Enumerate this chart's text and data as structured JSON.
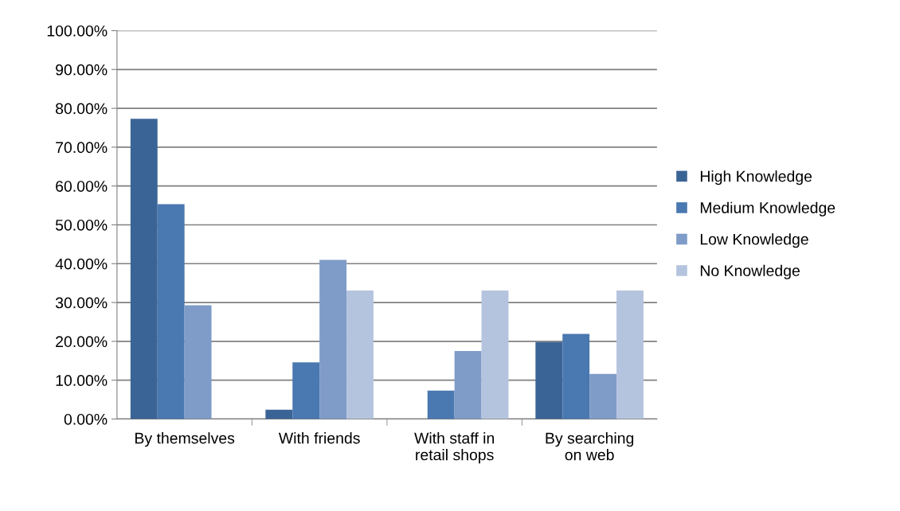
{
  "chart_data": {
    "type": "bar",
    "categories": [
      "By themselves",
      "With friends",
      "With staff in\nretail shops",
      "By searching\non web"
    ],
    "series": [
      {
        "name": "High Knowledge",
        "color": "#3b6496",
        "values": [
          77.3,
          2.4,
          0,
          19.8
        ]
      },
      {
        "name": "Medium Knowledge",
        "color": "#4a78b0",
        "values": [
          55.3,
          14.6,
          7.3,
          21.9
        ]
      },
      {
        "name": "Low Knowledge",
        "color": "#7f9cc8",
        "values": [
          29.3,
          41.0,
          17.5,
          11.6
        ]
      },
      {
        "name": "No Knowledge",
        "color": "#b5c4de",
        "values": [
          0,
          33.1,
          33.1,
          33.1
        ]
      }
    ],
    "ylim": [
      0,
      100
    ],
    "yticks": [
      {
        "value": 0,
        "label": "0.00%"
      },
      {
        "value": 10,
        "label": "10.00%"
      },
      {
        "value": 20,
        "label": "20.00%"
      },
      {
        "value": 30,
        "label": "30.00%"
      },
      {
        "value": 40,
        "label": "40.00%"
      },
      {
        "value": 50,
        "label": "50.00%"
      },
      {
        "value": 60,
        "label": "60.00%"
      },
      {
        "value": 70,
        "label": "70.00%"
      },
      {
        "value": 80,
        "label": "80.00%"
      },
      {
        "value": 90,
        "label": "90.00%"
      },
      {
        "value": 100,
        "label": "100.00%"
      }
    ],
    "grid": "y",
    "legend": "right"
  }
}
